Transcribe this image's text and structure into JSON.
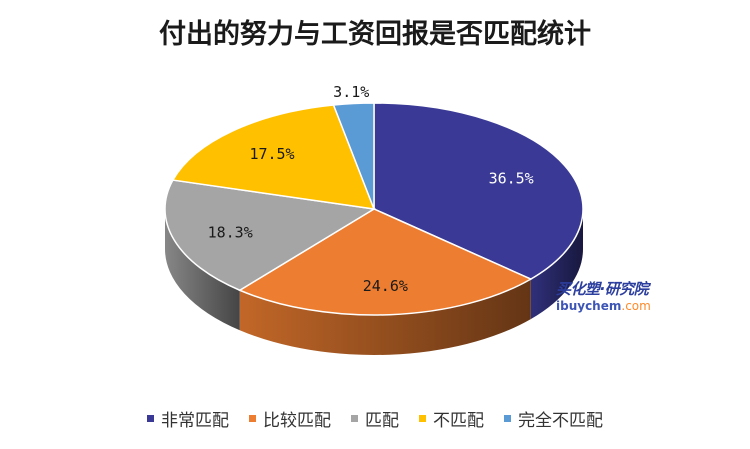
{
  "chart_data": {
    "type": "pie",
    "title": "付出的努力与工资回报是否匹配统计",
    "categories": [
      "非常匹配",
      "比较匹配",
      "匹配",
      "不匹配",
      "完全不匹配"
    ],
    "values": [
      36.5,
      24.6,
      18.3,
      17.5,
      3.1
    ],
    "labels": [
      "36.5%",
      "24.6%",
      "18.3%",
      "17.5%",
      "3.1%"
    ],
    "colors": [
      "#3a3a96",
      "#ed7d31",
      "#a5a5a5",
      "#ffc000",
      "#5b9bd5"
    ],
    "legend_position": "bottom",
    "style": "3d"
  },
  "watermark": {
    "brand": "买化塑·研究院",
    "site_main": "ibuychem",
    "site_suffix": ".com"
  }
}
